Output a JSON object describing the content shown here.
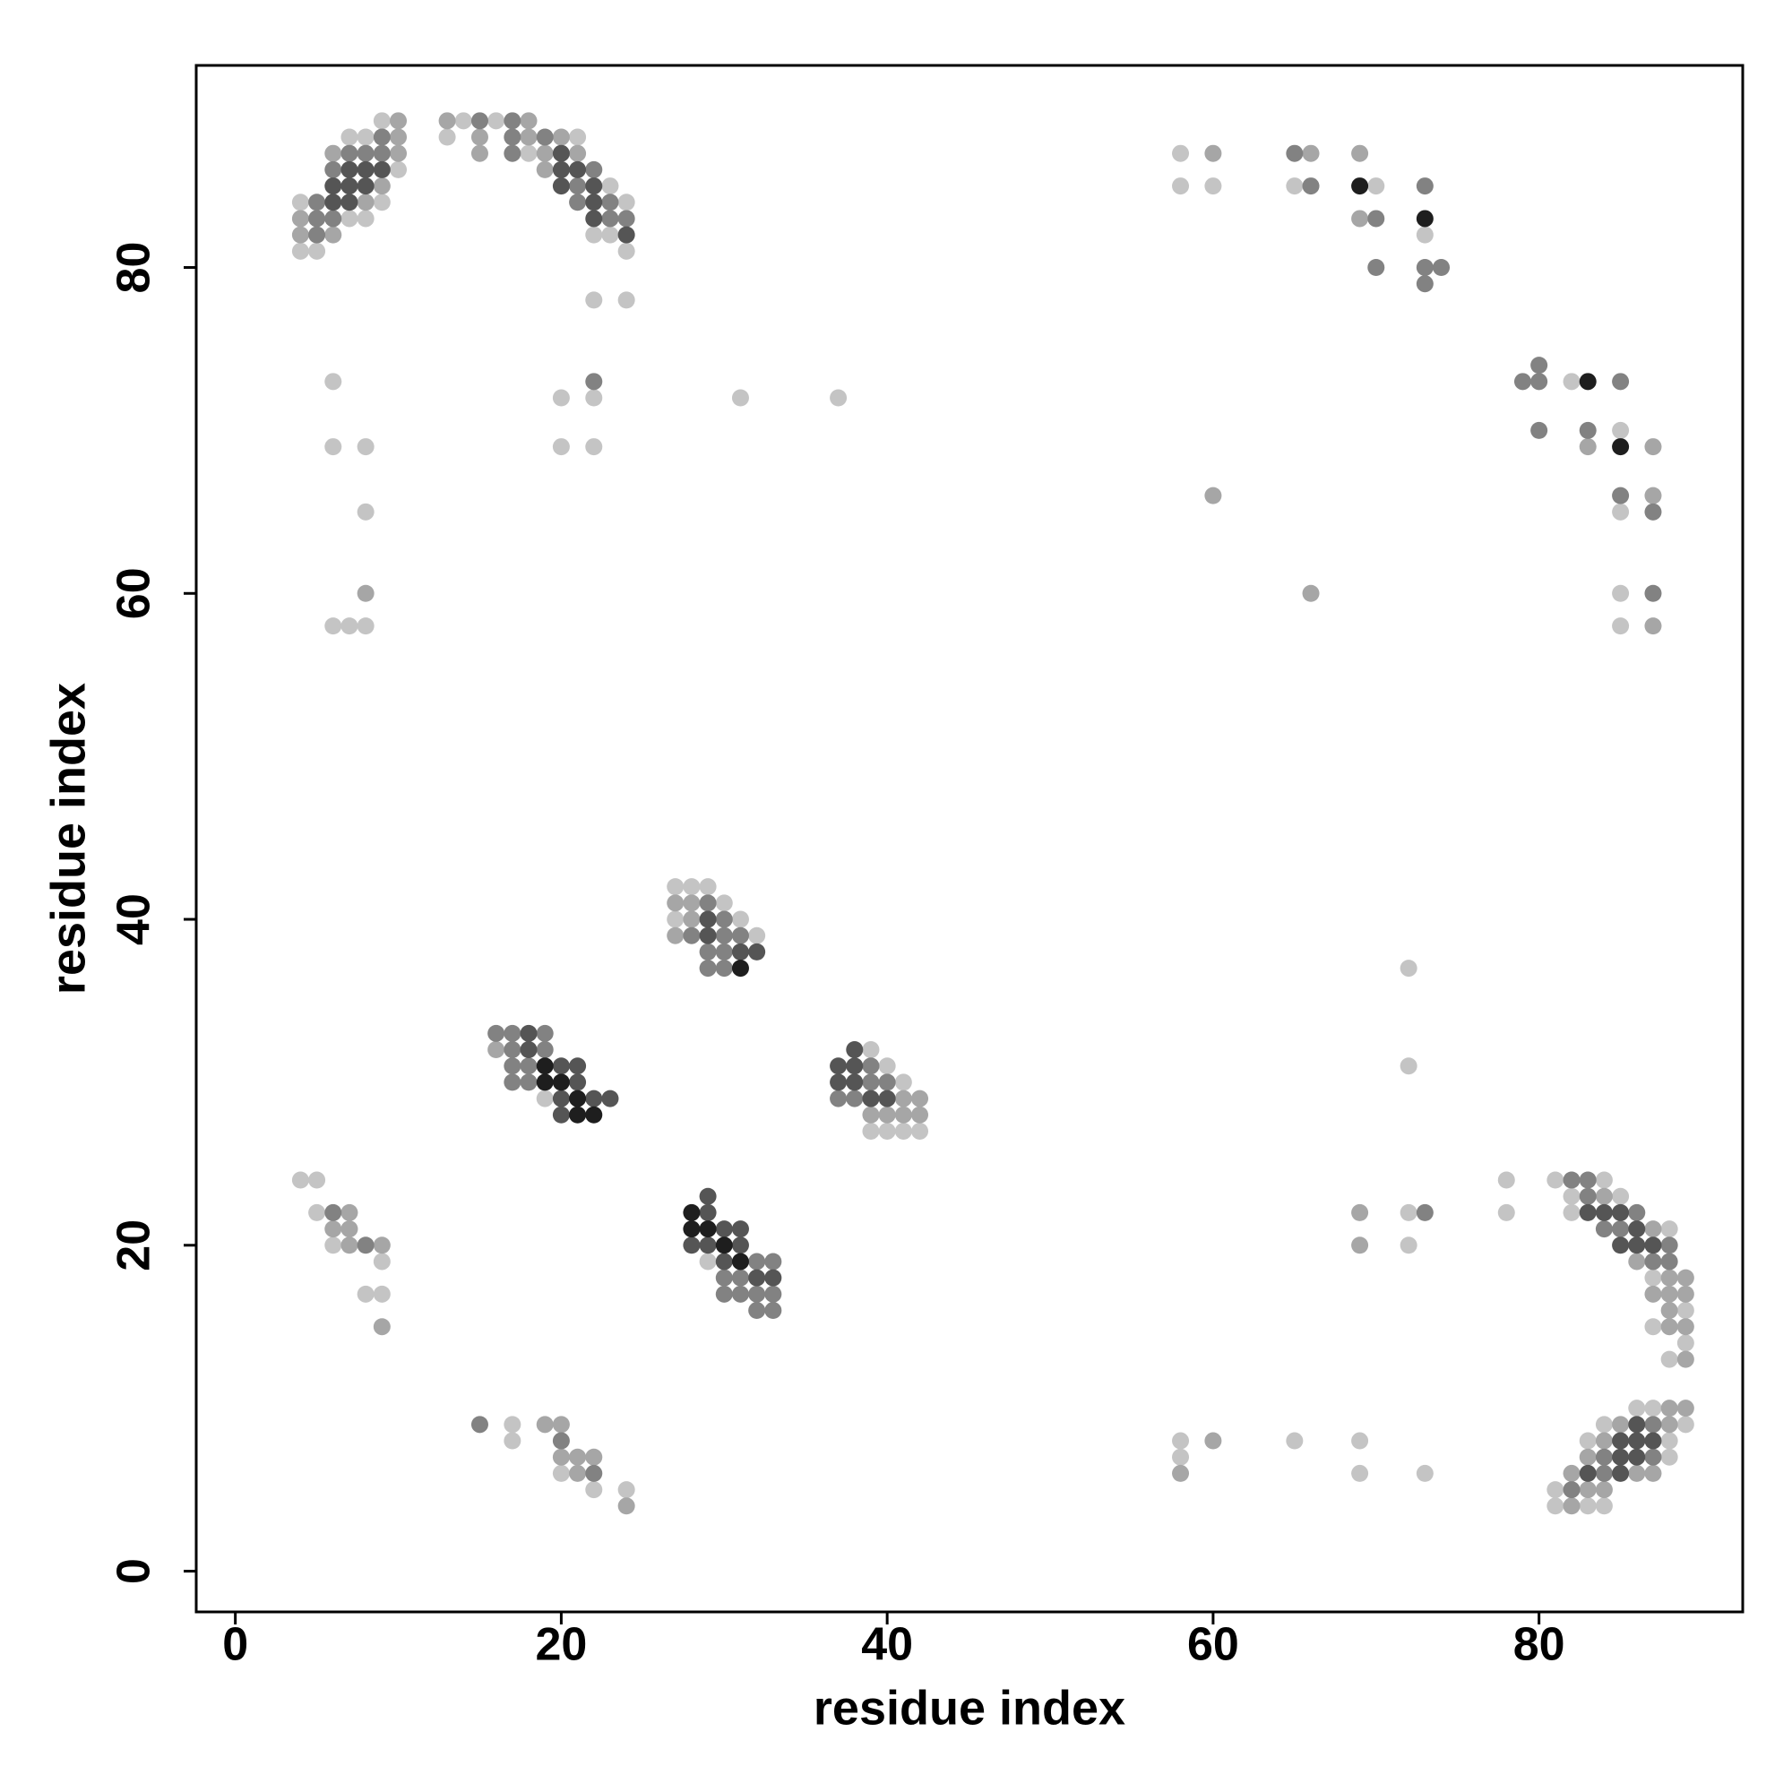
{
  "chart_data": {
    "type": "scatter",
    "xlabel": "residue index",
    "ylabel": "residue index",
    "xlim": [
      -2.4,
      92.5
    ],
    "ylim": [
      -2.5,
      92.4
    ],
    "xticks": [
      0,
      20,
      40,
      60,
      80
    ],
    "yticks": [
      0,
      20,
      40,
      60,
      80
    ],
    "series": [
      {
        "color": "#c4c4c4",
        "x": [
          9,
          7,
          8,
          10,
          4,
          9,
          7,
          8,
          4,
          5,
          14,
          16,
          13,
          21,
          18,
          23,
          24,
          22,
          23,
          24,
          22,
          24,
          6,
          20,
          22,
          31,
          37,
          6,
          8,
          20,
          22,
          8,
          6,
          7,
          8,
          58,
          58,
          60,
          65,
          70,
          73,
          82,
          85,
          85,
          85,
          85,
          27,
          28,
          29,
          30,
          27,
          31,
          32,
          19,
          39,
          40,
          41,
          39,
          40,
          41,
          42,
          29,
          4,
          5,
          5,
          6,
          9,
          8,
          9,
          17,
          17,
          20,
          22,
          24,
          58,
          65,
          69,
          58,
          69,
          73,
          72,
          72,
          72,
          72,
          78,
          81,
          84,
          82,
          85,
          78,
          82,
          88,
          87,
          89,
          87,
          89,
          88,
          87,
          86,
          84,
          89,
          83,
          88,
          88,
          81,
          81,
          83,
          84
        ],
        "y": [
          89,
          88,
          88,
          86,
          84,
          84,
          83,
          83,
          81,
          81,
          89,
          89,
          88,
          88,
          87,
          85,
          84,
          82,
          82,
          81,
          78,
          78,
          73,
          72,
          72,
          72,
          72,
          69,
          69,
          69,
          69,
          65,
          58,
          58,
          58,
          87,
          85,
          85,
          85,
          85,
          82,
          73,
          70,
          65,
          60,
          58,
          42,
          42,
          42,
          41,
          40,
          40,
          39,
          29,
          32,
          31,
          30,
          27,
          27,
          27,
          27,
          19,
          24,
          24,
          22,
          20,
          19,
          17,
          17,
          9,
          8,
          6,
          5,
          5,
          8,
          8,
          8,
          7,
          6,
          6,
          22,
          20,
          37,
          31,
          24,
          24,
          24,
          23,
          23,
          22,
          22,
          21,
          18,
          16,
          15,
          14,
          13,
          10,
          10,
          9,
          9,
          8,
          8,
          7,
          5,
          4,
          4,
          4
        ]
      },
      {
        "color": "#a6a6a6",
        "x": [
          10,
          10,
          6,
          10,
          9,
          8,
          4,
          4,
          6,
          13,
          18,
          15,
          18,
          20,
          15,
          19,
          21,
          19,
          8,
          60,
          66,
          69,
          69,
          83,
          87,
          87,
          60,
          66,
          87,
          27,
          28,
          28,
          27,
          16,
          41,
          42,
          39,
          40,
          41,
          42,
          7,
          6,
          7,
          7,
          9,
          9,
          19,
          20,
          20,
          21,
          22,
          21,
          24,
          60,
          58,
          69,
          69,
          84,
          87,
          86,
          88,
          89,
          87,
          88,
          89,
          88,
          88,
          89,
          89,
          88,
          89,
          85,
          88,
          84,
          83,
          82,
          86,
          87,
          83,
          84,
          82
        ],
        "y": [
          89,
          88,
          87,
          87,
          85,
          84,
          83,
          82,
          82,
          89,
          89,
          88,
          88,
          88,
          87,
          87,
          87,
          86,
          60,
          87,
          87,
          87,
          83,
          69,
          69,
          66,
          66,
          60,
          58,
          41,
          41,
          40,
          39,
          32,
          29,
          29,
          28,
          28,
          28,
          28,
          22,
          21,
          21,
          20,
          20,
          15,
          9,
          9,
          7,
          7,
          7,
          6,
          4,
          8,
          6,
          22,
          20,
          23,
          21,
          19,
          18,
          18,
          17,
          17,
          17,
          16,
          15,
          15,
          13,
          10,
          10,
          9,
          9,
          8,
          7,
          6,
          6,
          6,
          5,
          5,
          4
        ]
      },
      {
        "color": "#828282",
        "x": [
          9,
          7,
          8,
          9,
          6,
          5,
          5,
          6,
          5,
          15,
          17,
          17,
          19,
          17,
          22,
          21,
          21,
          23,
          23,
          24,
          22,
          65,
          66,
          73,
          70,
          70,
          73,
          74,
          73,
          79,
          80,
          80,
          85,
          80,
          83,
          85,
          87,
          87,
          29,
          30,
          28,
          30,
          31,
          29,
          30,
          29,
          30,
          16,
          17,
          19,
          17,
          19,
          17,
          18,
          17,
          18,
          39,
          39,
          40,
          37,
          38,
          32,
          33,
          30,
          31,
          30,
          31,
          32,
          33,
          32,
          33,
          6,
          8,
          15,
          20,
          22,
          73,
          82,
          83,
          83,
          86,
          84,
          85,
          88,
          87,
          88,
          87,
          84,
          87,
          84,
          82
        ],
        "y": [
          88,
          87,
          87,
          87,
          86,
          84,
          83,
          83,
          82,
          89,
          89,
          88,
          88,
          87,
          86,
          85,
          84,
          84,
          83,
          83,
          73,
          87,
          85,
          85,
          83,
          80,
          80,
          80,
          79,
          73,
          74,
          73,
          73,
          70,
          70,
          66,
          65,
          60,
          41,
          40,
          39,
          39,
          39,
          38,
          38,
          37,
          37,
          33,
          33,
          33,
          32,
          32,
          31,
          31,
          30,
          30,
          31,
          30,
          30,
          29,
          29,
          19,
          19,
          18,
          18,
          17,
          17,
          17,
          17,
          16,
          16,
          22,
          20,
          9,
          8,
          6,
          22,
          24,
          24,
          23,
          22,
          21,
          21,
          20,
          19,
          19,
          9,
          7,
          7,
          6,
          5
        ]
      },
      {
        "color": "#555555",
        "x": [
          7,
          8,
          9,
          6,
          7,
          8,
          6,
          7,
          20,
          20,
          21,
          20,
          22,
          22,
          22,
          24,
          29,
          29,
          31,
          32,
          18,
          18,
          20,
          21,
          21,
          20,
          22,
          23,
          20,
          38,
          37,
          38,
          37,
          38,
          39,
          40,
          29,
          29,
          30,
          31,
          28,
          29,
          31,
          30,
          32,
          33,
          83,
          84,
          85,
          86,
          85,
          86,
          87,
          86,
          85,
          86,
          87,
          85,
          86,
          83,
          85
        ],
        "y": [
          86,
          86,
          86,
          85,
          85,
          85,
          84,
          84,
          87,
          86,
          86,
          85,
          85,
          84,
          83,
          82,
          40,
          39,
          38,
          38,
          33,
          32,
          31,
          31,
          30,
          29,
          29,
          29,
          28,
          32,
          31,
          31,
          30,
          30,
          29,
          29,
          23,
          22,
          21,
          21,
          20,
          20,
          20,
          19,
          18,
          18,
          22,
          22,
          22,
          21,
          20,
          20,
          20,
          9,
          8,
          8,
          8,
          7,
          7,
          6,
          6
        ]
      },
      {
        "color": "#1e1e1e",
        "x": [
          69,
          73,
          83,
          85,
          31,
          19,
          19,
          20,
          21,
          21,
          22,
          28,
          28,
          29,
          30,
          31
        ],
        "y": [
          85,
          83,
          73,
          69,
          37,
          31,
          30,
          30,
          29,
          28,
          28,
          22,
          21,
          21,
          20,
          19
        ]
      }
    ]
  }
}
